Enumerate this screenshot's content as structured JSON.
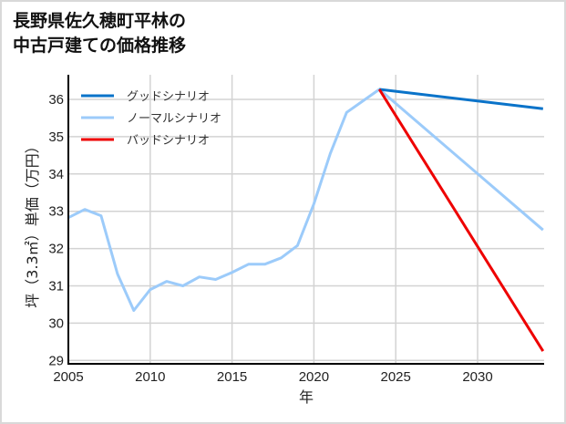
{
  "title_lines": [
    "長野県佐久穂町平林の",
    "中古戸建ての価格推移"
  ],
  "colors": {
    "good": "#0a73c9",
    "normal": "#9ccbfa",
    "bad": "#ee0000",
    "grid": "#d3d3d3",
    "axis": "#000000"
  },
  "chart_data": {
    "type": "line",
    "title": "長野県佐久穂町平林の中古戸建ての価格推移",
    "xlabel": "年",
    "ylabel": "坪（3.3㎡）単価（万円）",
    "xlim": [
      2005,
      2034
    ],
    "ylim": [
      29,
      36.6
    ],
    "x_ticks": [
      2005,
      2010,
      2015,
      2020,
      2025,
      2030
    ],
    "y_ticks": [
      29,
      30,
      31,
      32,
      33,
      34,
      35,
      36
    ],
    "grid": true,
    "legend_position": "upper left",
    "legend": [
      "グッドシナリオ",
      "ノーマルシナリオ",
      "バッドシナリオ"
    ],
    "series": [
      {
        "name": "グッドシナリオ",
        "color": "#0a73c9",
        "x": [
          2024,
          2034
        ],
        "values": [
          36.27,
          35.75
        ]
      },
      {
        "name": "ノーマルシナリオ",
        "color": "#9ccbfa",
        "x": [
          2005,
          2006,
          2007,
          2008,
          2009,
          2010,
          2011,
          2012,
          2013,
          2014,
          2015,
          2016,
          2017,
          2018,
          2019,
          2020,
          2021,
          2022,
          2023,
          2024,
          2034
        ],
        "values": [
          32.83,
          33.05,
          32.88,
          31.32,
          30.34,
          30.9,
          31.12,
          31.0,
          31.24,
          31.17,
          31.36,
          31.58,
          31.58,
          31.75,
          32.08,
          33.2,
          34.55,
          35.65,
          35.96,
          36.27,
          32.5
        ]
      },
      {
        "name": "バッドシナリオ",
        "color": "#ee0000",
        "x": [
          2024,
          2034
        ],
        "values": [
          36.27,
          29.25
        ]
      }
    ]
  }
}
